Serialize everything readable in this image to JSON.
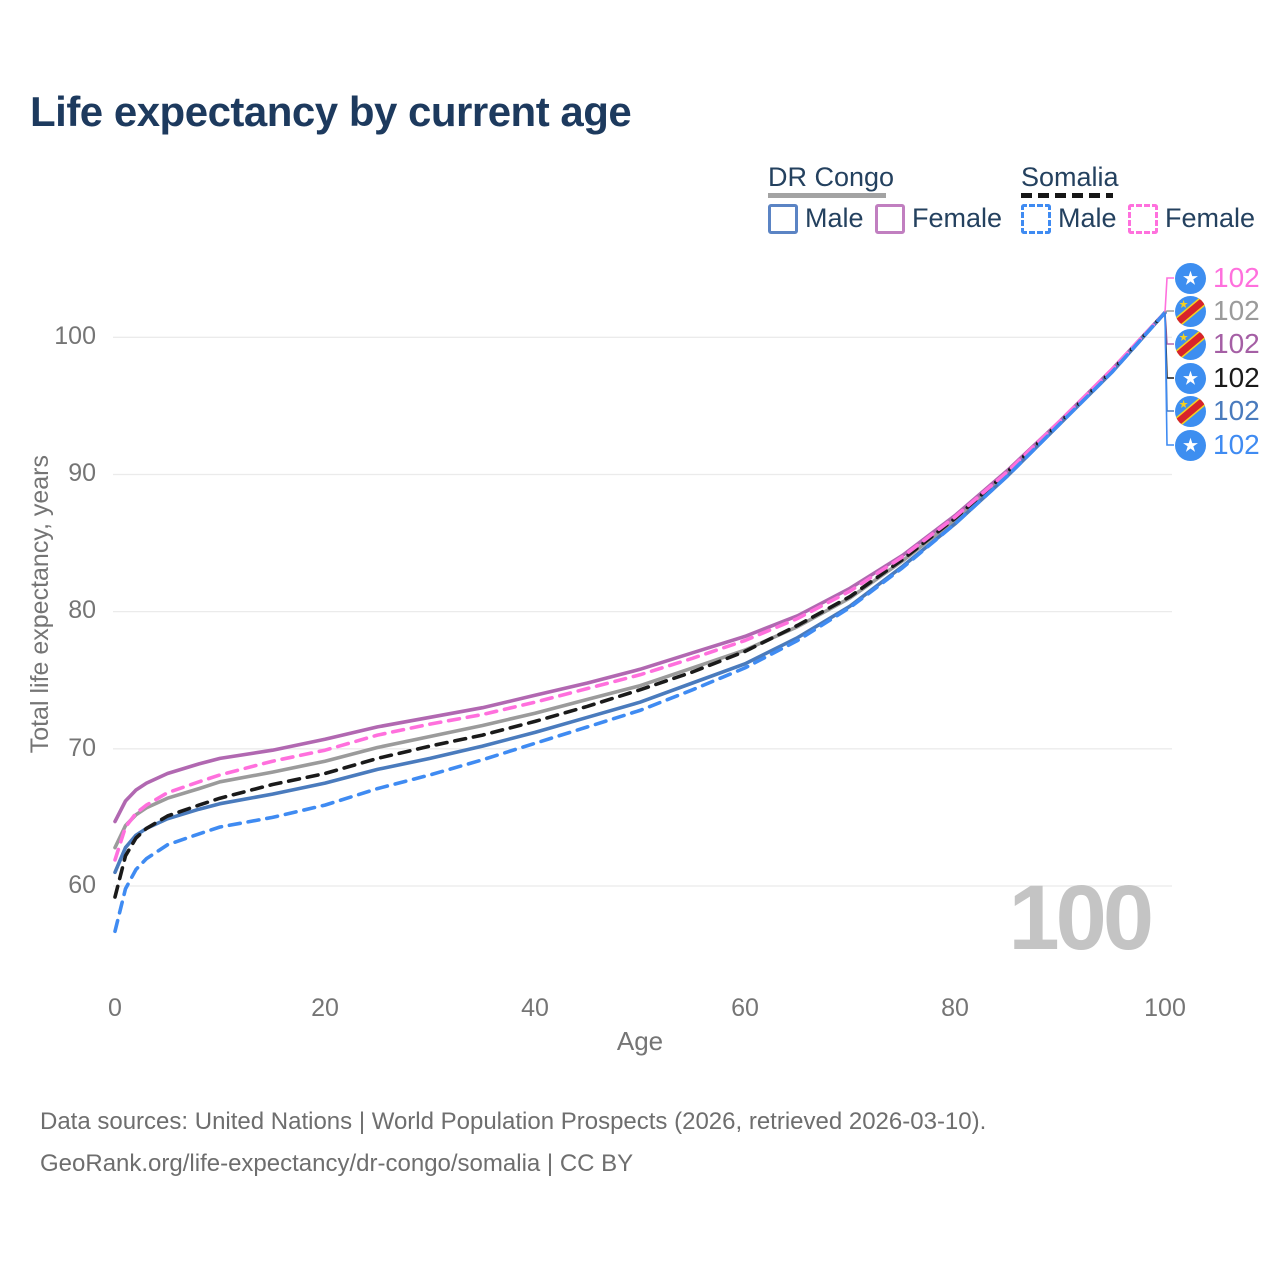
{
  "title": "Life expectancy by current age",
  "watermark": "100",
  "legend": {
    "groups": [
      {
        "label": "DR Congo",
        "line_style": "solid",
        "line_color": "#a3a3a3"
      },
      {
        "label": "Somalia",
        "line_style": "dashed",
        "line_color": "#161616"
      }
    ],
    "items": [
      {
        "label": "Male",
        "color": "#5b84c4",
        "style": "solid"
      },
      {
        "label": "Female",
        "color": "#c17fc0",
        "style": "solid"
      },
      {
        "label": "Male",
        "color": "#3f8bf2",
        "style": "dashed"
      },
      {
        "label": "Female",
        "color": "#ff70dd",
        "style": "dashed"
      }
    ]
  },
  "chart_data": {
    "type": "line",
    "title": "Life expectancy by current age",
    "xlabel": "Age",
    "ylabel": "Total life expectancy, years",
    "x_ticks": [
      0,
      20,
      40,
      60,
      80,
      100
    ],
    "y_ticks": [
      100,
      90,
      80,
      70,
      60
    ],
    "xlim": [
      0,
      100
    ],
    "ylim": [
      56,
      103
    ],
    "grid": "horizontal",
    "legend_position": "top-right",
    "x": [
      0,
      1,
      2,
      3,
      5,
      8,
      10,
      15,
      20,
      25,
      30,
      35,
      40,
      45,
      50,
      55,
      60,
      65,
      70,
      75,
      80,
      85,
      90,
      95,
      100
    ],
    "series": [
      {
        "name": "DR Congo Female",
        "country": "DR Congo",
        "sex": "Female",
        "color": "#b168b1",
        "dash": "solid",
        "end_label": "102",
        "end_label_color": "#a55fa5",
        "flag": "dr-congo",
        "values": [
          64.7,
          66.2,
          67.0,
          67.5,
          68.2,
          68.9,
          69.3,
          69.9,
          70.7,
          71.6,
          72.3,
          73.0,
          73.9,
          74.8,
          75.8,
          77.0,
          78.2,
          79.7,
          81.7,
          84.1,
          87.0,
          90.3,
          93.9,
          97.7,
          101.8
        ]
      },
      {
        "name": "Somalia Female",
        "country": "Somalia",
        "sex": "Female",
        "color": "#ff70dd",
        "dash": "dashed",
        "end_label": "102",
        "end_label_color": "#ff70dd",
        "flag": "somalia",
        "values": [
          61.9,
          64.3,
          65.3,
          65.9,
          66.8,
          67.6,
          68.1,
          69.1,
          69.9,
          71.0,
          71.8,
          72.5,
          73.4,
          74.4,
          75.4,
          76.6,
          77.9,
          79.5,
          81.5,
          84.0,
          86.9,
          90.2,
          93.9,
          97.7,
          101.8
        ]
      },
      {
        "name": "DR Congo Both sexes",
        "country": "DR Congo",
        "sex": "Both",
        "color": "#9b9b9b",
        "dash": "solid",
        "end_label": "102",
        "end_label_color": "#9b9b9b",
        "flag": "dr-congo",
        "values": [
          62.8,
          64.4,
          65.2,
          65.7,
          66.4,
          67.1,
          67.6,
          68.3,
          69.1,
          70.1,
          70.9,
          71.7,
          72.6,
          73.6,
          74.6,
          75.9,
          77.2,
          78.9,
          81.0,
          83.7,
          86.7,
          90.1,
          93.8,
          97.6,
          101.8
        ]
      },
      {
        "name": "Somalia Both sexes",
        "country": "Somalia",
        "sex": "Both",
        "color": "#1a1a1a",
        "dash": "dashed",
        "end_label": "102",
        "end_label_color": "#1a1a1a",
        "flag": "somalia",
        "values": [
          59.2,
          62.2,
          63.5,
          64.2,
          65.1,
          65.9,
          66.4,
          67.4,
          68.2,
          69.3,
          70.2,
          71.0,
          72.0,
          73.1,
          74.3,
          75.6,
          77.1,
          79.0,
          81.1,
          83.8,
          86.8,
          90.2,
          93.8,
          97.6,
          101.8
        ]
      },
      {
        "name": "DR Congo Male",
        "country": "DR Congo",
        "sex": "Male",
        "color": "#4a7bbd",
        "dash": "solid",
        "end_label": "102",
        "end_label_color": "#4a7bbd",
        "flag": "dr-congo",
        "values": [
          61.0,
          62.8,
          63.7,
          64.2,
          64.9,
          65.6,
          66.0,
          66.7,
          67.5,
          68.5,
          69.3,
          70.2,
          71.2,
          72.3,
          73.4,
          74.8,
          76.2,
          78.1,
          80.4,
          83.3,
          86.4,
          89.9,
          93.7,
          97.5,
          101.8
        ]
      },
      {
        "name": "Somalia Male",
        "country": "Somalia",
        "sex": "Male",
        "color": "#3f8bf2",
        "dash": "dashed",
        "end_label": "102",
        "end_label_color": "#3f8bf2",
        "flag": "somalia",
        "values": [
          56.7,
          59.8,
          61.2,
          62.0,
          63.0,
          63.8,
          64.3,
          65.0,
          65.9,
          67.1,
          68.1,
          69.2,
          70.4,
          71.6,
          72.8,
          74.3,
          75.9,
          77.9,
          80.3,
          83.2,
          86.4,
          89.9,
          93.7,
          97.5,
          101.8
        ]
      }
    ],
    "end_label_order": [
      1,
      2,
      0,
      3,
      4,
      5
    ]
  },
  "footer": {
    "line1": "Data sources: United Nations | World Population Prospects (2026, retrieved 2026-03-10).",
    "line2": "GeoRank.org/life-expectancy/dr-congo/somalia | CC BY"
  }
}
